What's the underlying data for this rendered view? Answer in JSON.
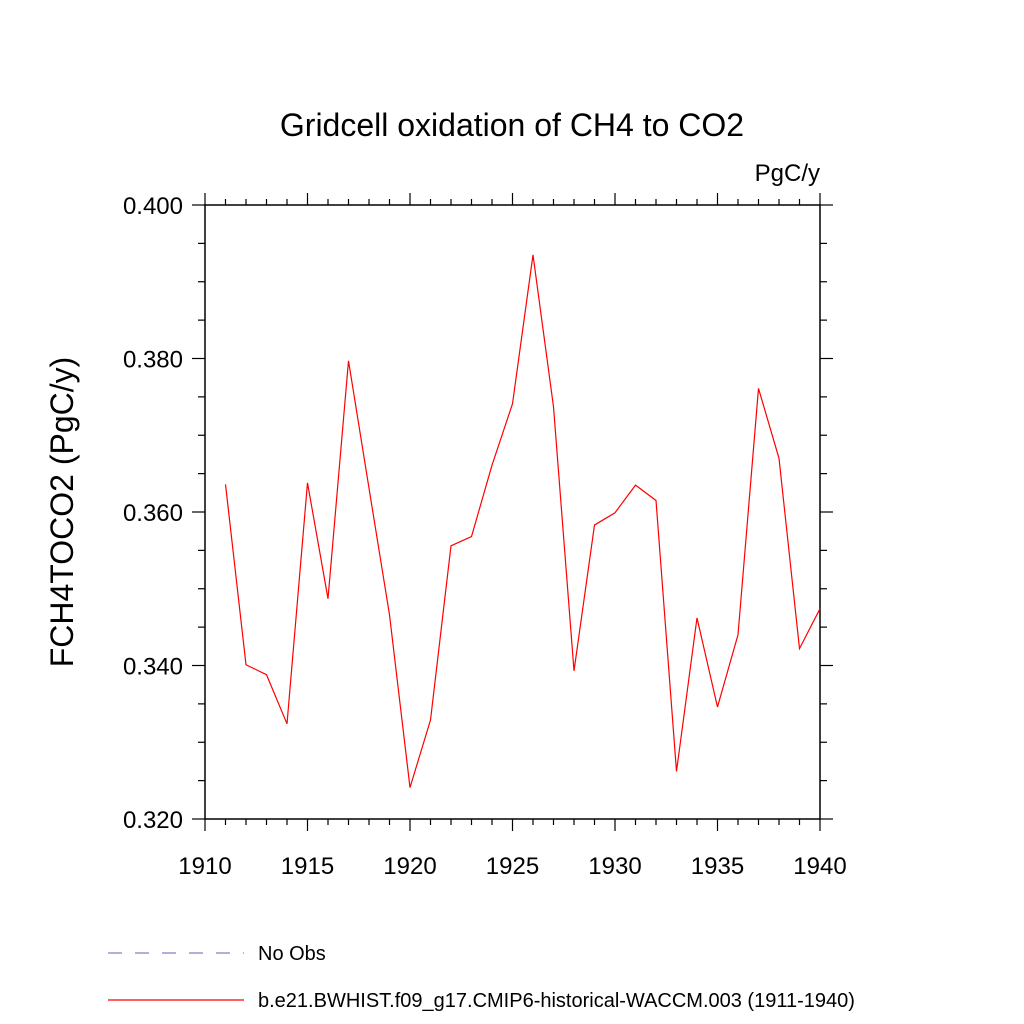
{
  "chart_data": {
    "type": "line",
    "title": "Gridcell oxidation of CH4 to CO2",
    "units_label": "PgC/y",
    "ylabel": "FCH4TOCO2  (PgC/y)",
    "xlabel": "",
    "xlim": [
      1910,
      1940
    ],
    "ylim": [
      0.32,
      0.4
    ],
    "x_ticks": [
      1910,
      1915,
      1920,
      1925,
      1930,
      1935,
      1940
    ],
    "x_tick_labels": [
      "1910",
      "1915",
      "1920",
      "1925",
      "1930",
      "1935",
      "1940"
    ],
    "y_ticks": [
      0.32,
      0.34,
      0.36,
      0.38,
      0.4
    ],
    "y_tick_labels": [
      "0.320",
      "0.340",
      "0.360",
      "0.380",
      "0.400"
    ],
    "grid": false,
    "legend_position": "bottom-left",
    "series": [
      {
        "name": "b.e21.BWHIST.f09_g17.CMIP6-historical-WACCM.003 (1911-1940)",
        "color": "#ff0000",
        "style": "solid",
        "x": [
          1911,
          1912,
          1913,
          1914,
          1915,
          1916,
          1917,
          1918,
          1919,
          1920,
          1921,
          1922,
          1923,
          1924,
          1925,
          1926,
          1927,
          1928,
          1929,
          1930,
          1931,
          1932,
          1933,
          1934,
          1935,
          1936,
          1937,
          1938,
          1939,
          1940
        ],
        "values": [
          0.3636,
          0.3401,
          0.3388,
          0.3324,
          0.3638,
          0.3487,
          0.3797,
          0.3631,
          0.3466,
          0.3241,
          0.3329,
          0.3556,
          0.3568,
          0.3661,
          0.3741,
          0.3935,
          0.3737,
          0.3393,
          0.3583,
          0.3599,
          0.3635,
          0.3615,
          0.3262,
          0.3462,
          0.3346,
          0.344,
          0.3761,
          0.367,
          0.3422,
          0.3474
        ]
      },
      {
        "name": "No Obs",
        "color": "#8080c0",
        "style": "dashed",
        "x": [],
        "values": []
      }
    ]
  }
}
